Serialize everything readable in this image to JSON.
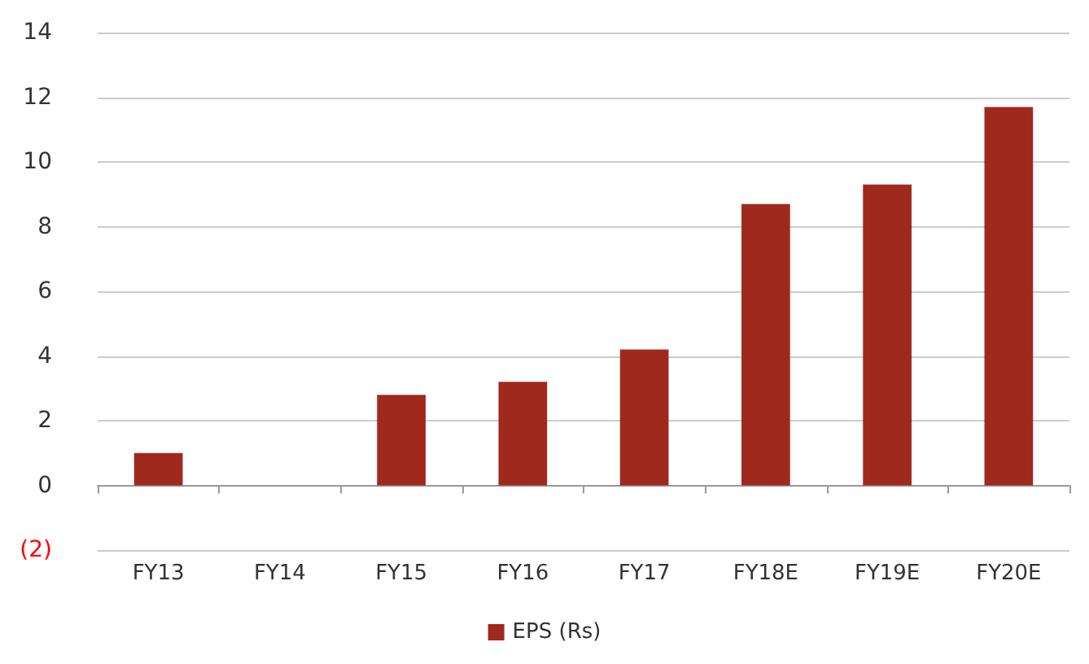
{
  "chart_data": {
    "type": "bar",
    "categories": [
      "FY13",
      "FY14",
      "FY15",
      "FY16",
      "FY17",
      "FY18E",
      "FY19E",
      "FY20E"
    ],
    "series": [
      {
        "name": "EPS (Rs)",
        "color": "#a0291e",
        "values": [
          1.0,
          null,
          2.8,
          3.2,
          4.2,
          8.7,
          9.3,
          11.7
        ]
      }
    ],
    "ylim": [
      -2,
      14
    ],
    "yticks": [
      {
        "value": -2,
        "label": "(2)"
      },
      0,
      2,
      4,
      6,
      8,
      10,
      12,
      14
    ],
    "grid": "y",
    "legend": "bottom"
  }
}
